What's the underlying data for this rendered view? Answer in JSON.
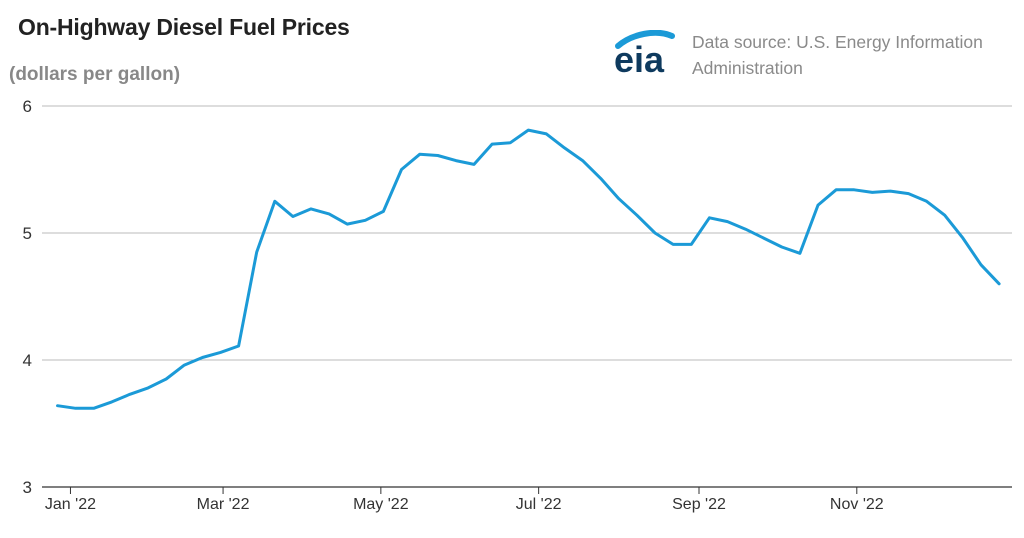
{
  "header": {
    "title": "On-Highway Diesel Fuel Prices",
    "unit": "(dollars per gallon)",
    "logo_text": "eia",
    "source_line1": "Data source: U.S. Energy Information",
    "source_line2": "Administration"
  },
  "colors": {
    "line": "#1b9ad7",
    "grid": "#bbbbbb",
    "axis": "#333333",
    "logo_text": "#0e3a5e",
    "logo_arc": "#1b9ad7"
  },
  "chart_data": {
    "type": "line",
    "title": "On-Highway Diesel Fuel Prices",
    "ylabel": "(dollars per gallon)",
    "ylim": [
      3,
      6
    ],
    "yticks": [
      3,
      4,
      5,
      6
    ],
    "grid": true,
    "x_tick_labels": [
      "Jan '22",
      "Mar '22",
      "May '22",
      "Jul '22",
      "Sep '22",
      "Nov '22"
    ],
    "x_tick_dates": [
      "2022-01-01",
      "2022-03-01",
      "2022-05-01",
      "2022-07-01",
      "2022-09-01",
      "2022-11-01"
    ],
    "xlim": [
      "2021-12-21",
      "2022-12-31"
    ],
    "series": [
      {
        "x": [
          "2021-12-27",
          "2022-01-03",
          "2022-01-10",
          "2022-01-17",
          "2022-01-24",
          "2022-01-31",
          "2022-02-07",
          "2022-02-14",
          "2022-02-21",
          "2022-02-28",
          "2022-03-07",
          "2022-03-14",
          "2022-03-21",
          "2022-03-28",
          "2022-04-04",
          "2022-04-11",
          "2022-04-18",
          "2022-04-25",
          "2022-05-02",
          "2022-05-09",
          "2022-05-16",
          "2022-05-23",
          "2022-05-30",
          "2022-06-06",
          "2022-06-13",
          "2022-06-20",
          "2022-06-27",
          "2022-07-04",
          "2022-07-11",
          "2022-07-18",
          "2022-07-25",
          "2022-08-01",
          "2022-08-08",
          "2022-08-15",
          "2022-08-22",
          "2022-08-29",
          "2022-09-05",
          "2022-09-12",
          "2022-09-19",
          "2022-09-26",
          "2022-10-03",
          "2022-10-10",
          "2022-10-17",
          "2022-10-24",
          "2022-10-31",
          "2022-11-07",
          "2022-11-14",
          "2022-11-21",
          "2022-11-28",
          "2022-12-05",
          "2022-12-12",
          "2022-12-19",
          "2022-12-26"
        ],
        "values": [
          3.64,
          3.62,
          3.62,
          3.67,
          3.73,
          3.78,
          3.85,
          3.96,
          4.02,
          4.06,
          4.11,
          4.85,
          5.25,
          5.13,
          5.19,
          5.15,
          5.07,
          5.1,
          5.17,
          5.5,
          5.62,
          5.61,
          5.57,
          5.54,
          5.7,
          5.71,
          5.81,
          5.78,
          5.67,
          5.57,
          5.43,
          5.27,
          5.14,
          5.0,
          4.91,
          4.91,
          5.12,
          5.09,
          5.03,
          4.96,
          4.89,
          4.84,
          5.22,
          5.34,
          5.34,
          5.32,
          5.33,
          5.31,
          5.25,
          5.14,
          4.96,
          4.75,
          4.6
        ]
      }
    ]
  }
}
